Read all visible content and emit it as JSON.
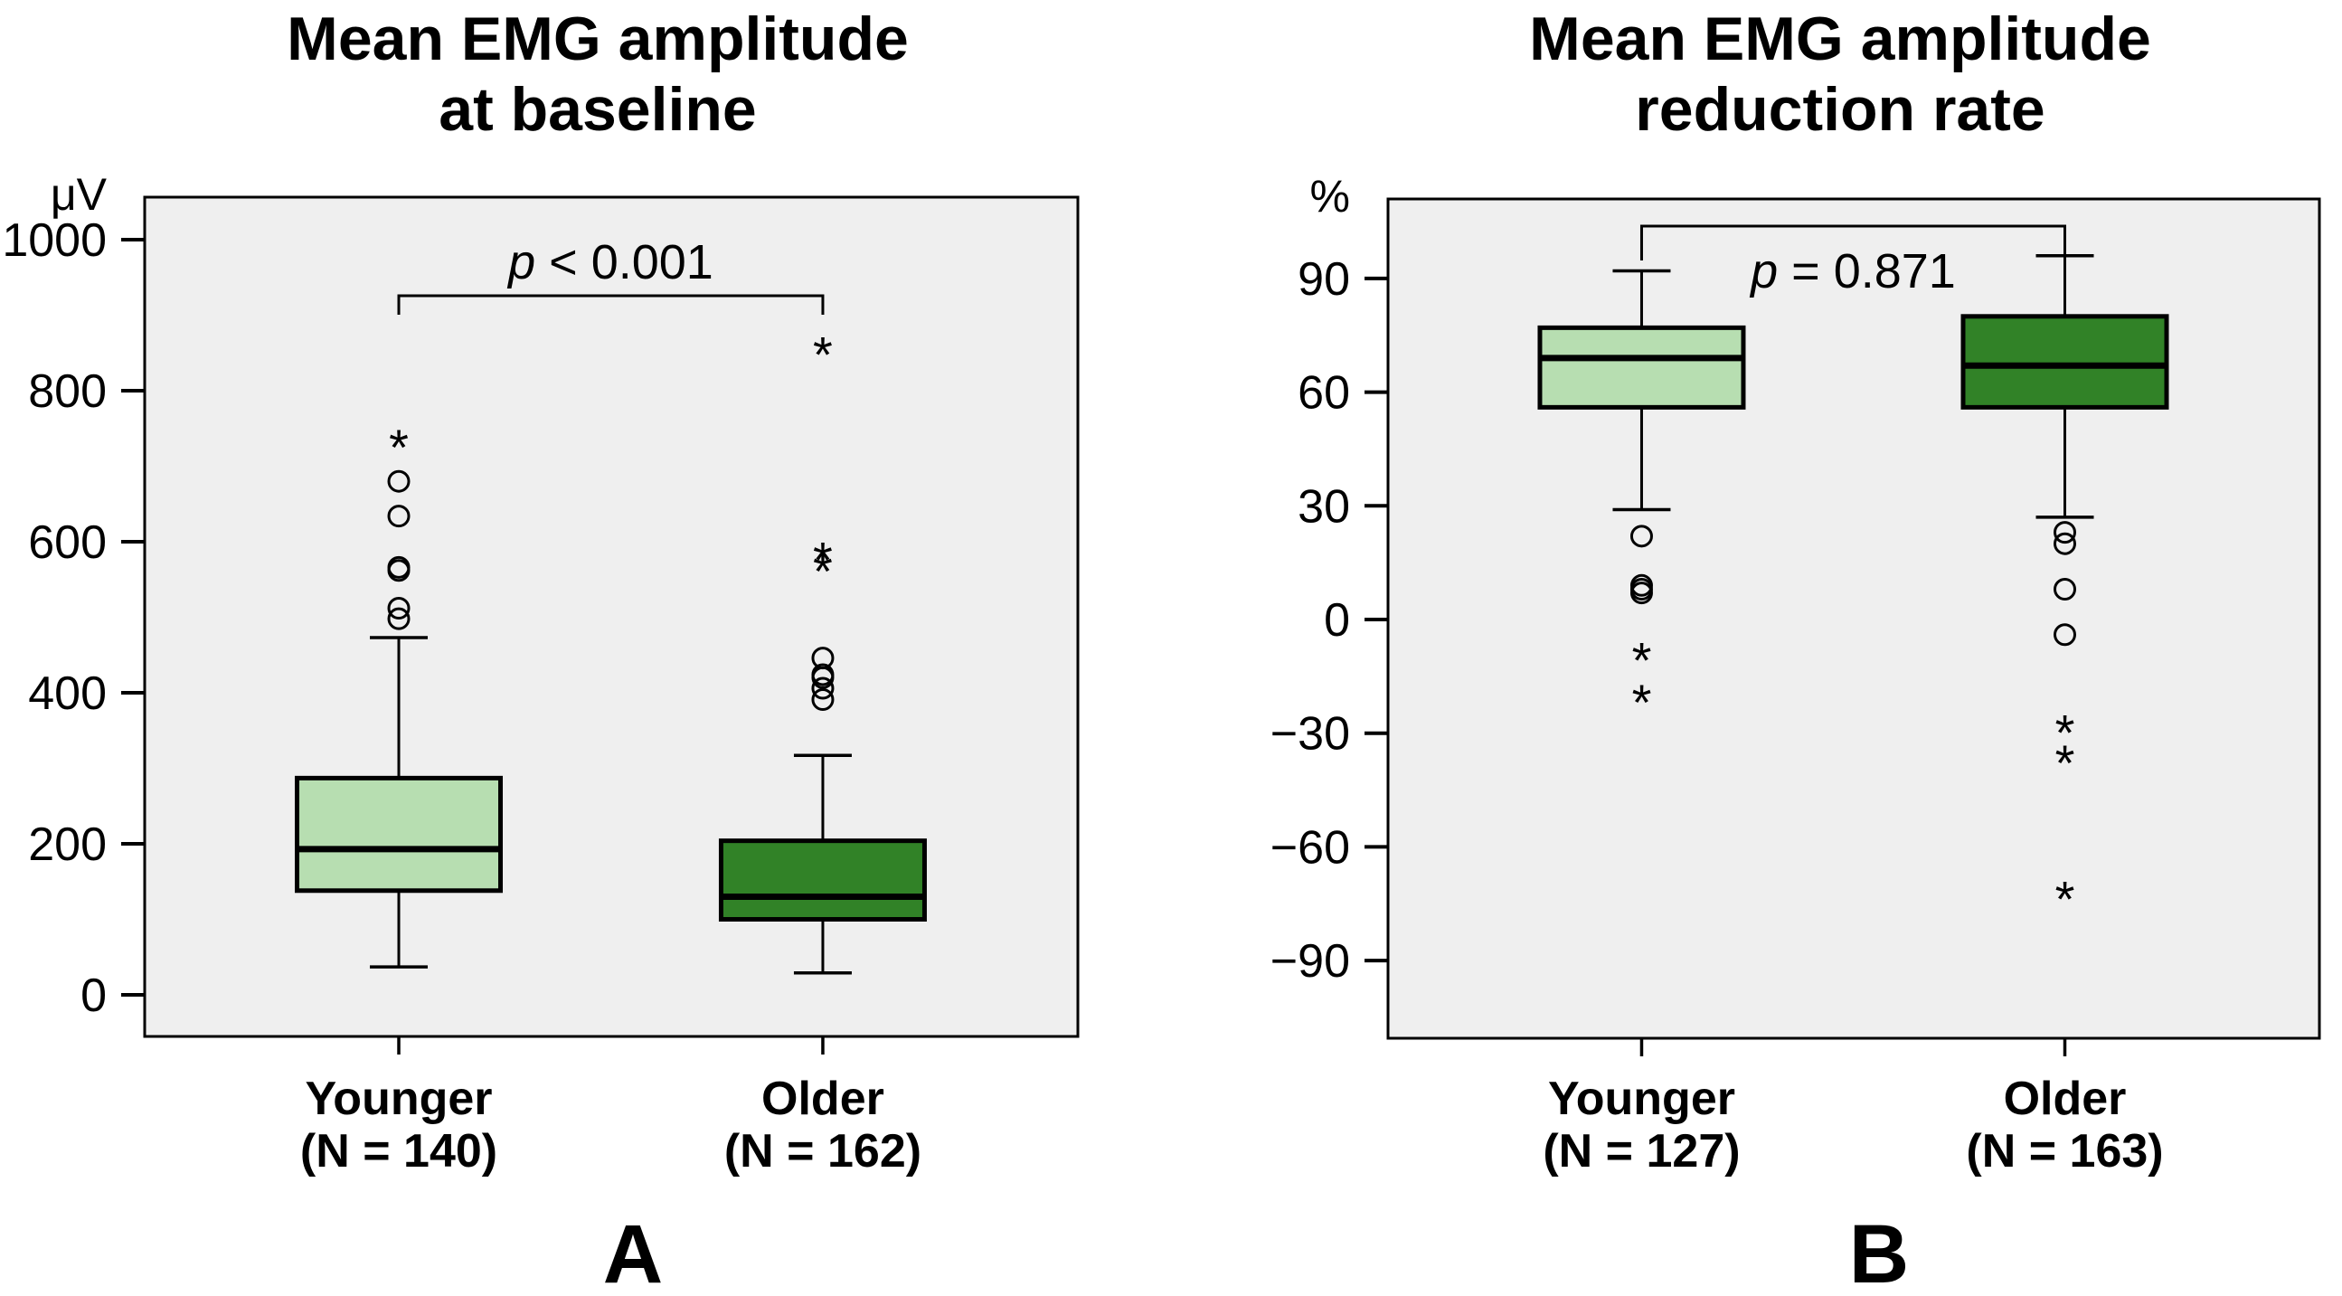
{
  "style": {
    "background": "#ffffff",
    "panel_bg": "#efefef",
    "light_green": "#b7deb1",
    "dark_green": "#318227",
    "stroke_black": "#000000"
  },
  "chart_data": [
    {
      "type": "box",
      "panel_letter": "A",
      "title": "Mean EMG amplitude\nat baseline",
      "unit": "μV",
      "y_ticks": [
        1000,
        800,
        600,
        400,
        200,
        0
      ],
      "ylim": [
        -55,
        1056
      ],
      "grid": false,
      "p_text": "p < 0.001",
      "p_text_position": "above-bracket",
      "groups": [
        {
          "label": "Younger",
          "n_label": "(N = 140)",
          "fill": "#b7deb1",
          "whisker_low": 37,
          "q1": 138,
          "median": 193,
          "q3": 287,
          "whisker_high": 473,
          "outliers_circle": [
            498,
            512,
            562,
            566,
            634,
            680
          ],
          "outliers_star": [
            734
          ]
        },
        {
          "label": "Older",
          "n_label": "(N = 162)",
          "fill": "#318227",
          "whisker_low": 29,
          "q1": 100,
          "median": 130,
          "q3": 204,
          "whisker_high": 317,
          "outliers_circle": [
            391,
            406,
            420,
            424,
            446
          ],
          "outliers_star": [
            570,
            585,
            857
          ]
        }
      ]
    },
    {
      "type": "box",
      "panel_letter": "B",
      "title": "Mean EMG amplitude\nreduction rate",
      "unit": "%",
      "y_ticks": [
        90,
        60,
        30,
        0,
        -30,
        -60,
        -90
      ],
      "ylim": [
        -110,
        111
      ],
      "grid": false,
      "p_text": "p = 0.871",
      "p_text_position": "below-bracket",
      "groups": [
        {
          "label": "Younger",
          "n_label": "(N = 127)",
          "fill": "#b7deb1",
          "whisker_low": 29,
          "q1": 56,
          "median": 69,
          "q3": 77,
          "whisker_high": 92,
          "outliers_circle": [
            22,
            9,
            8,
            7
          ],
          "outliers_star": [
            -9,
            -20
          ]
        },
        {
          "label": "Older",
          "n_label": "(N = 163)",
          "fill": "#318227",
          "whisker_low": 27,
          "q1": 56,
          "median": 67,
          "q3": 80,
          "whisker_high": 96,
          "outliers_circle": [
            23,
            20,
            8,
            -4
          ],
          "outliers_star": [
            -28,
            -36,
            -72
          ]
        }
      ]
    }
  ]
}
